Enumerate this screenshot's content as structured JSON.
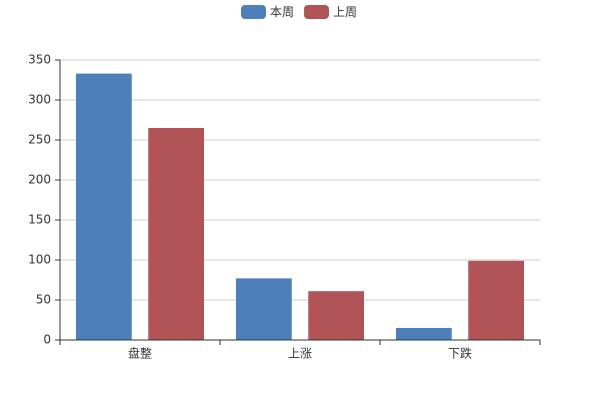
{
  "chart_data": {
    "type": "bar",
    "categories": [
      "盘整",
      "上涨",
      "下跌"
    ],
    "series": [
      {
        "name": "本周",
        "color": "#4d7fbb",
        "values": [
          333,
          77,
          15
        ]
      },
      {
        "name": "上周",
        "color": "#b05457",
        "values": [
          265,
          61,
          99
        ]
      }
    ],
    "ylim": [
      0,
      350
    ],
    "yticks": [
      0,
      50,
      100,
      150,
      200,
      250,
      300,
      350
    ],
    "grid": true,
    "legend": "top"
  }
}
